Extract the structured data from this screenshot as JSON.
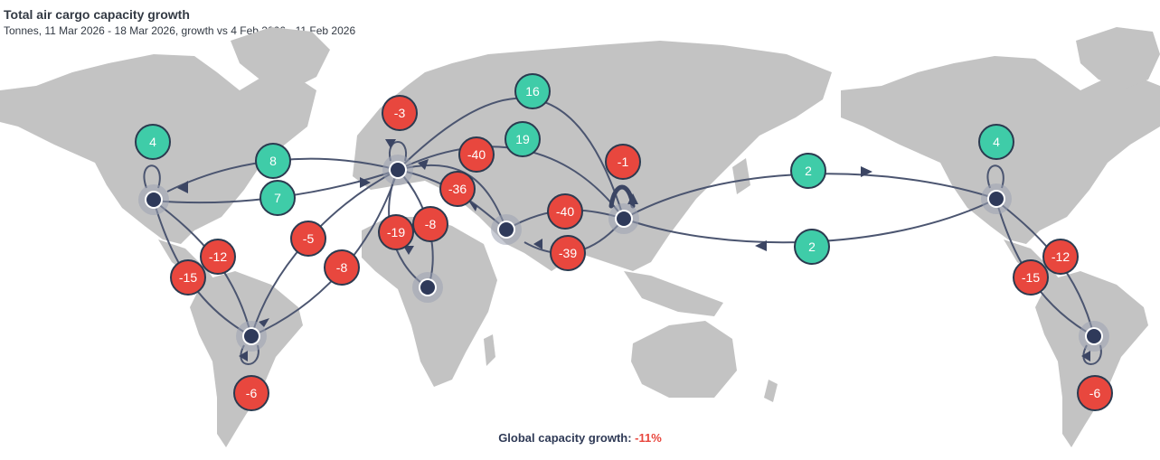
{
  "header": {
    "title": "Total air cargo capacity growth",
    "subtitle": "Tonnes, 11 Mar 2026 - 18 Mar 2026, growth vs 4 Feb 2026 - 11 Feb 2026"
  },
  "footer": {
    "label": "Global capacity growth:",
    "value": "-11%"
  },
  "colors": {
    "positive": "#3fcca8",
    "negative": "#e8473e",
    "route": "#4b5570",
    "hub": "#2f3a5a",
    "land": "#c3c3c3"
  },
  "hubs": [
    "north-america",
    "south-america",
    "europe",
    "africa",
    "middle-east",
    "asia-pacific",
    "north-america-repeat",
    "south-america-repeat"
  ],
  "flows": [
    {
      "id": "na-intra",
      "value": "4"
    },
    {
      "id": "eu-to-na",
      "value": "8"
    },
    {
      "id": "na-to-eu",
      "value": "7"
    },
    {
      "id": "eu-intra",
      "value": "-3"
    },
    {
      "id": "ap-to-eu",
      "value": "16"
    },
    {
      "id": "eu-to-ap",
      "value": "19"
    },
    {
      "id": "me-to-eu",
      "value": "-40"
    },
    {
      "id": "eu-to-me",
      "value": "-36"
    },
    {
      "id": "ap-intra",
      "value": "-1"
    },
    {
      "id": "ap-to-na",
      "value": "2"
    },
    {
      "id": "na-to-ap",
      "value": "2"
    },
    {
      "id": "me-to-ap",
      "value": "-40"
    },
    {
      "id": "ap-to-me",
      "value": "-39"
    },
    {
      "id": "eu-to-af",
      "value": "-8"
    },
    {
      "id": "af-to-eu",
      "value": "-19"
    },
    {
      "id": "sa-to-eu",
      "value": "-5"
    },
    {
      "id": "eu-to-sa",
      "value": "-8"
    },
    {
      "id": "sa-to-na",
      "value": "-12"
    },
    {
      "id": "na-to-sa",
      "value": "-15"
    },
    {
      "id": "sa-intra",
      "value": "-6"
    },
    {
      "id": "na-intra-repeat",
      "value": "4"
    },
    {
      "id": "sa-to-na-repeat",
      "value": "-12"
    },
    {
      "id": "na-to-sa-repeat",
      "value": "-15"
    },
    {
      "id": "sa-intra-repeat",
      "value": "-6"
    }
  ]
}
